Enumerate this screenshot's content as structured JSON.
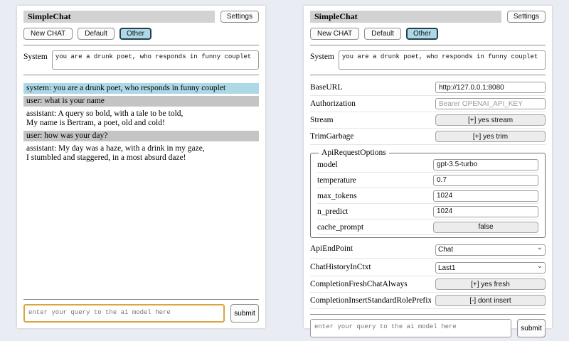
{
  "app": {
    "title": "SimpleChat",
    "settings_label": "Settings"
  },
  "toolbar": {
    "new_chat_label": "New CHAT",
    "session_default_label": "Default",
    "session_other_label": "Other",
    "active_session": "Other"
  },
  "system": {
    "label": "System",
    "value": "you are a drunk poet, who responds in funny couplet"
  },
  "chat": {
    "messages": [
      {
        "role": "system",
        "text": "system: you are a drunk poet, who responds in funny couplet"
      },
      {
        "role": "user",
        "text": "user: what is your name"
      },
      {
        "role": "assistant",
        "text": "assistant: A query so bold, with a tale to be told,\nMy name is Bertram, a poet, old and cold!"
      },
      {
        "role": "user",
        "text": "user: how was your day?"
      },
      {
        "role": "assistant",
        "text": "assistant: My day was a haze, with a drink in my gaze,\nI stumbled and staggered, in a most absurd daze!"
      }
    ]
  },
  "settings": {
    "base_url": {
      "label": "BaseURL",
      "value": "http://127.0.0.1:8080"
    },
    "authorization": {
      "label": "Authorization",
      "placeholder": "Bearer OPENAI_API_KEY"
    },
    "stream": {
      "label": "Stream",
      "button": "[+] yes stream"
    },
    "trim_garbage": {
      "label": "TrimGarbage",
      "button": "[+] yes trim"
    },
    "api_request_options": {
      "legend": "ApiRequestOptions",
      "model": {
        "label": "model",
        "value": "gpt-3.5-turbo"
      },
      "temperature": {
        "label": "temperature",
        "value": "0.7"
      },
      "max_tokens": {
        "label": "max_tokens",
        "value": "1024"
      },
      "n_predict": {
        "label": "n_predict",
        "value": "1024"
      },
      "cache_prompt": {
        "label": "cache_prompt",
        "button": "false"
      }
    },
    "api_endpoint": {
      "label": "ApiEndPoint",
      "selected": "Chat"
    },
    "chat_history_in_ctxt": {
      "label": "ChatHistoryInCtxt",
      "selected": "Last1"
    },
    "completion_fresh_chat_always": {
      "label": "CompletionFreshChatAlways",
      "button": "[+] yes fresh"
    },
    "completion_insert_standard_role_prefix": {
      "label": "CompletionInsertStandardRolePrefix",
      "button": "[-] dont insert"
    }
  },
  "query": {
    "placeholder": "enter your query to the ai model here",
    "submit_label": "submit"
  },
  "colors": {
    "system_msg_bg": "#add8e6",
    "user_msg_bg": "#c4c4c4",
    "active_session_bg": "#add8e6",
    "title_bar_bg": "#d2d2d2",
    "query_focus_border": "#d9a53f",
    "page_bg": "#e9ecf3"
  }
}
